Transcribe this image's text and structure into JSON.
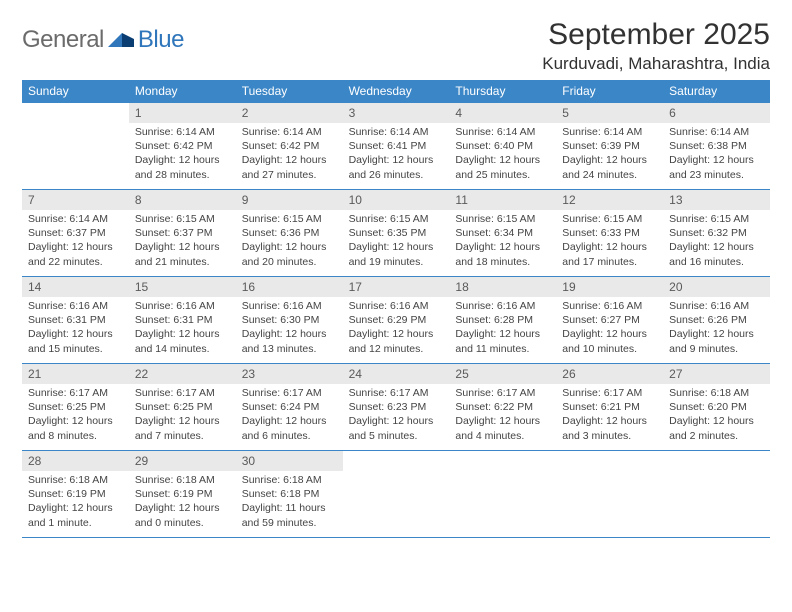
{
  "logo": {
    "word1": "General",
    "word2": "Blue"
  },
  "header": {
    "month_title": "September 2025",
    "location": "Kurduvadi, Maharashtra, India"
  },
  "colors": {
    "header_bg": "#3b86c7",
    "header_text": "#ffffff",
    "daynum_bg": "#e9e9e9",
    "daynum_text": "#5a5a5a",
    "body_text": "#444444",
    "rule": "#3b86c7",
    "logo_gray": "#6b6b6b",
    "logo_blue": "#2f76bb"
  },
  "weekdays": [
    "Sunday",
    "Monday",
    "Tuesday",
    "Wednesday",
    "Thursday",
    "Friday",
    "Saturday"
  ],
  "weeks": [
    [
      {
        "day": "",
        "lines": []
      },
      {
        "day": "1",
        "lines": [
          "Sunrise: 6:14 AM",
          "Sunset: 6:42 PM",
          "Daylight: 12 hours and 28 minutes."
        ]
      },
      {
        "day": "2",
        "lines": [
          "Sunrise: 6:14 AM",
          "Sunset: 6:42 PM",
          "Daylight: 12 hours and 27 minutes."
        ]
      },
      {
        "day": "3",
        "lines": [
          "Sunrise: 6:14 AM",
          "Sunset: 6:41 PM",
          "Daylight: 12 hours and 26 minutes."
        ]
      },
      {
        "day": "4",
        "lines": [
          "Sunrise: 6:14 AM",
          "Sunset: 6:40 PM",
          "Daylight: 12 hours and 25 minutes."
        ]
      },
      {
        "day": "5",
        "lines": [
          "Sunrise: 6:14 AM",
          "Sunset: 6:39 PM",
          "Daylight: 12 hours and 24 minutes."
        ]
      },
      {
        "day": "6",
        "lines": [
          "Sunrise: 6:14 AM",
          "Sunset: 6:38 PM",
          "Daylight: 12 hours and 23 minutes."
        ]
      }
    ],
    [
      {
        "day": "7",
        "lines": [
          "Sunrise: 6:14 AM",
          "Sunset: 6:37 PM",
          "Daylight: 12 hours and 22 minutes."
        ]
      },
      {
        "day": "8",
        "lines": [
          "Sunrise: 6:15 AM",
          "Sunset: 6:37 PM",
          "Daylight: 12 hours and 21 minutes."
        ]
      },
      {
        "day": "9",
        "lines": [
          "Sunrise: 6:15 AM",
          "Sunset: 6:36 PM",
          "Daylight: 12 hours and 20 minutes."
        ]
      },
      {
        "day": "10",
        "lines": [
          "Sunrise: 6:15 AM",
          "Sunset: 6:35 PM",
          "Daylight: 12 hours and 19 minutes."
        ]
      },
      {
        "day": "11",
        "lines": [
          "Sunrise: 6:15 AM",
          "Sunset: 6:34 PM",
          "Daylight: 12 hours and 18 minutes."
        ]
      },
      {
        "day": "12",
        "lines": [
          "Sunrise: 6:15 AM",
          "Sunset: 6:33 PM",
          "Daylight: 12 hours and 17 minutes."
        ]
      },
      {
        "day": "13",
        "lines": [
          "Sunrise: 6:15 AM",
          "Sunset: 6:32 PM",
          "Daylight: 12 hours and 16 minutes."
        ]
      }
    ],
    [
      {
        "day": "14",
        "lines": [
          "Sunrise: 6:16 AM",
          "Sunset: 6:31 PM",
          "Daylight: 12 hours and 15 minutes."
        ]
      },
      {
        "day": "15",
        "lines": [
          "Sunrise: 6:16 AM",
          "Sunset: 6:31 PM",
          "Daylight: 12 hours and 14 minutes."
        ]
      },
      {
        "day": "16",
        "lines": [
          "Sunrise: 6:16 AM",
          "Sunset: 6:30 PM",
          "Daylight: 12 hours and 13 minutes."
        ]
      },
      {
        "day": "17",
        "lines": [
          "Sunrise: 6:16 AM",
          "Sunset: 6:29 PM",
          "Daylight: 12 hours and 12 minutes."
        ]
      },
      {
        "day": "18",
        "lines": [
          "Sunrise: 6:16 AM",
          "Sunset: 6:28 PM",
          "Daylight: 12 hours and 11 minutes."
        ]
      },
      {
        "day": "19",
        "lines": [
          "Sunrise: 6:16 AM",
          "Sunset: 6:27 PM",
          "Daylight: 12 hours and 10 minutes."
        ]
      },
      {
        "day": "20",
        "lines": [
          "Sunrise: 6:16 AM",
          "Sunset: 6:26 PM",
          "Daylight: 12 hours and 9 minutes."
        ]
      }
    ],
    [
      {
        "day": "21",
        "lines": [
          "Sunrise: 6:17 AM",
          "Sunset: 6:25 PM",
          "Daylight: 12 hours and 8 minutes."
        ]
      },
      {
        "day": "22",
        "lines": [
          "Sunrise: 6:17 AM",
          "Sunset: 6:25 PM",
          "Daylight: 12 hours and 7 minutes."
        ]
      },
      {
        "day": "23",
        "lines": [
          "Sunrise: 6:17 AM",
          "Sunset: 6:24 PM",
          "Daylight: 12 hours and 6 minutes."
        ]
      },
      {
        "day": "24",
        "lines": [
          "Sunrise: 6:17 AM",
          "Sunset: 6:23 PM",
          "Daylight: 12 hours and 5 minutes."
        ]
      },
      {
        "day": "25",
        "lines": [
          "Sunrise: 6:17 AM",
          "Sunset: 6:22 PM",
          "Daylight: 12 hours and 4 minutes."
        ]
      },
      {
        "day": "26",
        "lines": [
          "Sunrise: 6:17 AM",
          "Sunset: 6:21 PM",
          "Daylight: 12 hours and 3 minutes."
        ]
      },
      {
        "day": "27",
        "lines": [
          "Sunrise: 6:18 AM",
          "Sunset: 6:20 PM",
          "Daylight: 12 hours and 2 minutes."
        ]
      }
    ],
    [
      {
        "day": "28",
        "lines": [
          "Sunrise: 6:18 AM",
          "Sunset: 6:19 PM",
          "Daylight: 12 hours and 1 minute."
        ]
      },
      {
        "day": "29",
        "lines": [
          "Sunrise: 6:18 AM",
          "Sunset: 6:19 PM",
          "Daylight: 12 hours and 0 minutes."
        ]
      },
      {
        "day": "30",
        "lines": [
          "Sunrise: 6:18 AM",
          "Sunset: 6:18 PM",
          "Daylight: 11 hours and 59 minutes."
        ]
      },
      {
        "day": "",
        "lines": []
      },
      {
        "day": "",
        "lines": []
      },
      {
        "day": "",
        "lines": []
      },
      {
        "day": "",
        "lines": []
      }
    ]
  ]
}
